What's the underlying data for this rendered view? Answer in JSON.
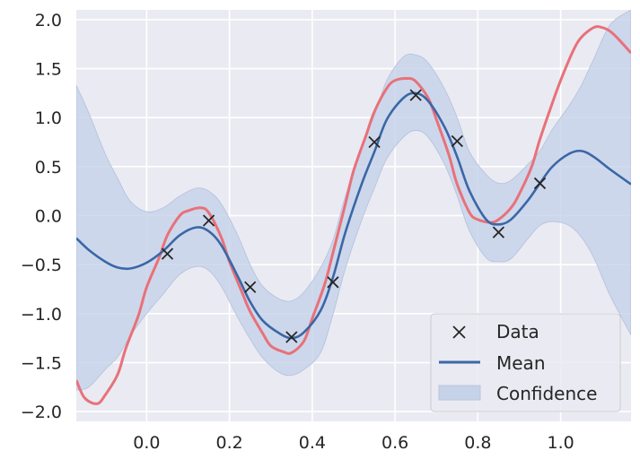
{
  "chart_data": {
    "type": "line",
    "title": "",
    "xlabel": "",
    "ylabel": "",
    "xlim": [
      -0.17,
      1.17
    ],
    "ylim": [
      -2.1,
      2.1
    ],
    "xticks": [
      0.0,
      0.2,
      0.4,
      0.6,
      0.8,
      1.0
    ],
    "xtick_labels": [
      "0.0",
      "0.2",
      "0.4",
      "0.6",
      "0.8",
      "1.0"
    ],
    "yticks": [
      -2.0,
      -1.5,
      -1.0,
      -0.5,
      0.0,
      0.5,
      1.0,
      1.5,
      2.0
    ],
    "ytick_labels": [
      "−2.0",
      "−1.5",
      "−1.0",
      "−0.5",
      "0.0",
      "0.5",
      "1.0",
      "1.5",
      "2.0"
    ],
    "grid": true,
    "legend_position": "bottom-right",
    "colors": {
      "background": "#eaeaf2",
      "grid": "#ffffff",
      "true_function": "#e8717a",
      "mean": "#3a67a6",
      "confidence_fill": "#c6d2e8",
      "data_marker": "#262626"
    },
    "legend": [
      {
        "label": "Data",
        "kind": "marker"
      },
      {
        "label": "Mean",
        "kind": "line"
      },
      {
        "label": "Confidence",
        "kind": "patch"
      }
    ],
    "data_points": {
      "x": [
        0.05,
        0.15,
        0.25,
        0.35,
        0.45,
        0.55,
        0.65,
        0.75,
        0.85,
        0.95
      ],
      "y": [
        -0.39,
        -0.05,
        -0.73,
        -1.24,
        -0.68,
        0.75,
        1.23,
        0.76,
        -0.17,
        0.33
      ]
    },
    "true_function": {
      "x": [
        -0.17,
        -0.15,
        -0.12,
        -0.1,
        -0.07,
        -0.05,
        -0.02,
        0.0,
        0.03,
        0.05,
        0.08,
        0.1,
        0.13,
        0.15,
        0.18,
        0.2,
        0.23,
        0.25,
        0.28,
        0.3,
        0.33,
        0.35,
        0.38,
        0.4,
        0.43,
        0.45,
        0.48,
        0.5,
        0.53,
        0.55,
        0.58,
        0.6,
        0.63,
        0.65,
        0.68,
        0.7,
        0.73,
        0.75,
        0.78,
        0.8,
        0.83,
        0.85,
        0.88,
        0.9,
        0.93,
        0.95,
        0.98,
        1.0,
        1.03,
        1.05,
        1.08,
        1.1,
        1.12,
        1.14,
        1.17
      ],
      "y": [
        -1.68,
        -1.86,
        -1.92,
        -1.83,
        -1.62,
        -1.35,
        -1.02,
        -0.73,
        -0.43,
        -0.2,
        0.0,
        0.05,
        0.08,
        0.03,
        -0.22,
        -0.47,
        -0.78,
        -0.98,
        -1.2,
        -1.33,
        -1.39,
        -1.4,
        -1.28,
        -1.05,
        -0.7,
        -0.38,
        0.12,
        0.46,
        0.82,
        1.06,
        1.3,
        1.38,
        1.4,
        1.37,
        1.2,
        0.98,
        0.62,
        0.32,
        0.03,
        -0.04,
        -0.07,
        -0.04,
        0.08,
        0.22,
        0.5,
        0.78,
        1.15,
        1.38,
        1.68,
        1.82,
        1.92,
        1.92,
        1.88,
        1.8,
        1.66
      ]
    },
    "mean": {
      "x": [
        -0.17,
        -0.14,
        -0.1,
        -0.07,
        -0.04,
        0.0,
        0.04,
        0.08,
        0.12,
        0.15,
        0.18,
        0.22,
        0.25,
        0.28,
        0.32,
        0.35,
        0.38,
        0.42,
        0.45,
        0.48,
        0.52,
        0.55,
        0.58,
        0.62,
        0.65,
        0.68,
        0.72,
        0.75,
        0.78,
        0.82,
        0.85,
        0.88,
        0.92,
        0.95,
        0.98,
        1.02,
        1.05,
        1.08,
        1.12,
        1.17
      ],
      "y": [
        -0.23,
        -0.35,
        -0.47,
        -0.53,
        -0.54,
        -0.48,
        -0.36,
        -0.2,
        -0.12,
        -0.16,
        -0.3,
        -0.62,
        -0.88,
        -1.07,
        -1.2,
        -1.25,
        -1.19,
        -0.97,
        -0.63,
        -0.17,
        0.33,
        0.65,
        0.98,
        1.2,
        1.25,
        1.17,
        0.9,
        0.6,
        0.25,
        -0.04,
        -0.09,
        -0.04,
        0.15,
        0.33,
        0.5,
        0.63,
        0.66,
        0.6,
        0.47,
        0.32
      ]
    },
    "confidence_upper": {
      "x": [
        -0.17,
        -0.14,
        -0.1,
        -0.07,
        -0.04,
        0.0,
        0.04,
        0.08,
        0.12,
        0.15,
        0.18,
        0.22,
        0.25,
        0.28,
        0.32,
        0.35,
        0.38,
        0.42,
        0.45,
        0.48,
        0.52,
        0.55,
        0.58,
        0.62,
        0.65,
        0.68,
        0.72,
        0.75,
        0.78,
        0.82,
        0.85,
        0.88,
        0.92,
        0.95,
        0.98,
        1.02,
        1.05,
        1.08,
        1.12,
        1.17
      ],
      "y": [
        1.33,
        1.05,
        0.63,
        0.38,
        0.15,
        0.04,
        0.08,
        0.2,
        0.28,
        0.25,
        0.12,
        -0.2,
        -0.5,
        -0.72,
        -0.85,
        -0.87,
        -0.78,
        -0.53,
        -0.25,
        0.2,
        0.7,
        1.02,
        1.38,
        1.62,
        1.64,
        1.56,
        1.29,
        1.0,
        0.65,
        0.42,
        0.33,
        0.36,
        0.52,
        0.66,
        0.88,
        1.12,
        1.33,
        1.6,
        1.95,
        2.1
      ]
    },
    "confidence_lower": {
      "x": [
        -0.17,
        -0.14,
        -0.1,
        -0.07,
        -0.04,
        0.0,
        0.04,
        0.08,
        0.12,
        0.15,
        0.18,
        0.22,
        0.25,
        0.28,
        0.32,
        0.35,
        0.38,
        0.42,
        0.45,
        0.48,
        0.52,
        0.55,
        0.58,
        0.62,
        0.65,
        0.68,
        0.72,
        0.75,
        0.78,
        0.82,
        0.85,
        0.88,
        0.92,
        0.95,
        0.98,
        1.02,
        1.05,
        1.08,
        1.12,
        1.17
      ],
      "y": [
        -1.78,
        -1.75,
        -1.57,
        -1.44,
        -1.23,
        -1.0,
        -0.8,
        -0.6,
        -0.52,
        -0.56,
        -0.72,
        -1.04,
        -1.26,
        -1.45,
        -1.6,
        -1.63,
        -1.57,
        -1.4,
        -1.01,
        -0.54,
        -0.04,
        0.28,
        0.58,
        0.8,
        0.87,
        0.8,
        0.52,
        0.2,
        -0.16,
        -0.43,
        -0.47,
        -0.44,
        -0.24,
        -0.1,
        -0.06,
        -0.1,
        -0.22,
        -0.43,
        -0.82,
        -1.22
      ]
    }
  }
}
